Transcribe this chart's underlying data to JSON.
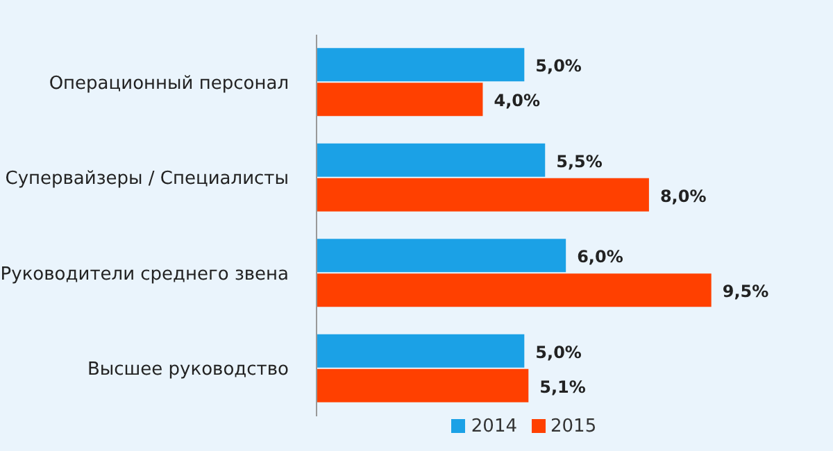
{
  "chart_data": {
    "type": "bar",
    "orientation": "horizontal",
    "categories": [
      "Операционный персонал",
      "Супервайзеры / Специалисты",
      "Руководители среднего звена",
      "Высшее руководство"
    ],
    "series": [
      {
        "name": "2014",
        "color": "#1ba1e6",
        "values": [
          5.0,
          5.5,
          6.0,
          5.0
        ],
        "value_labels": [
          "5,0%",
          "5,5%",
          "6,0%",
          "5,0%"
        ]
      },
      {
        "name": "2015",
        "color": "#ff4000",
        "values": [
          4.0,
          8.0,
          9.5,
          5.1
        ],
        "value_labels": [
          "4,0%",
          "8,0%",
          "9,5%",
          "5,1%"
        ]
      }
    ],
    "legend": "bottom"
  }
}
